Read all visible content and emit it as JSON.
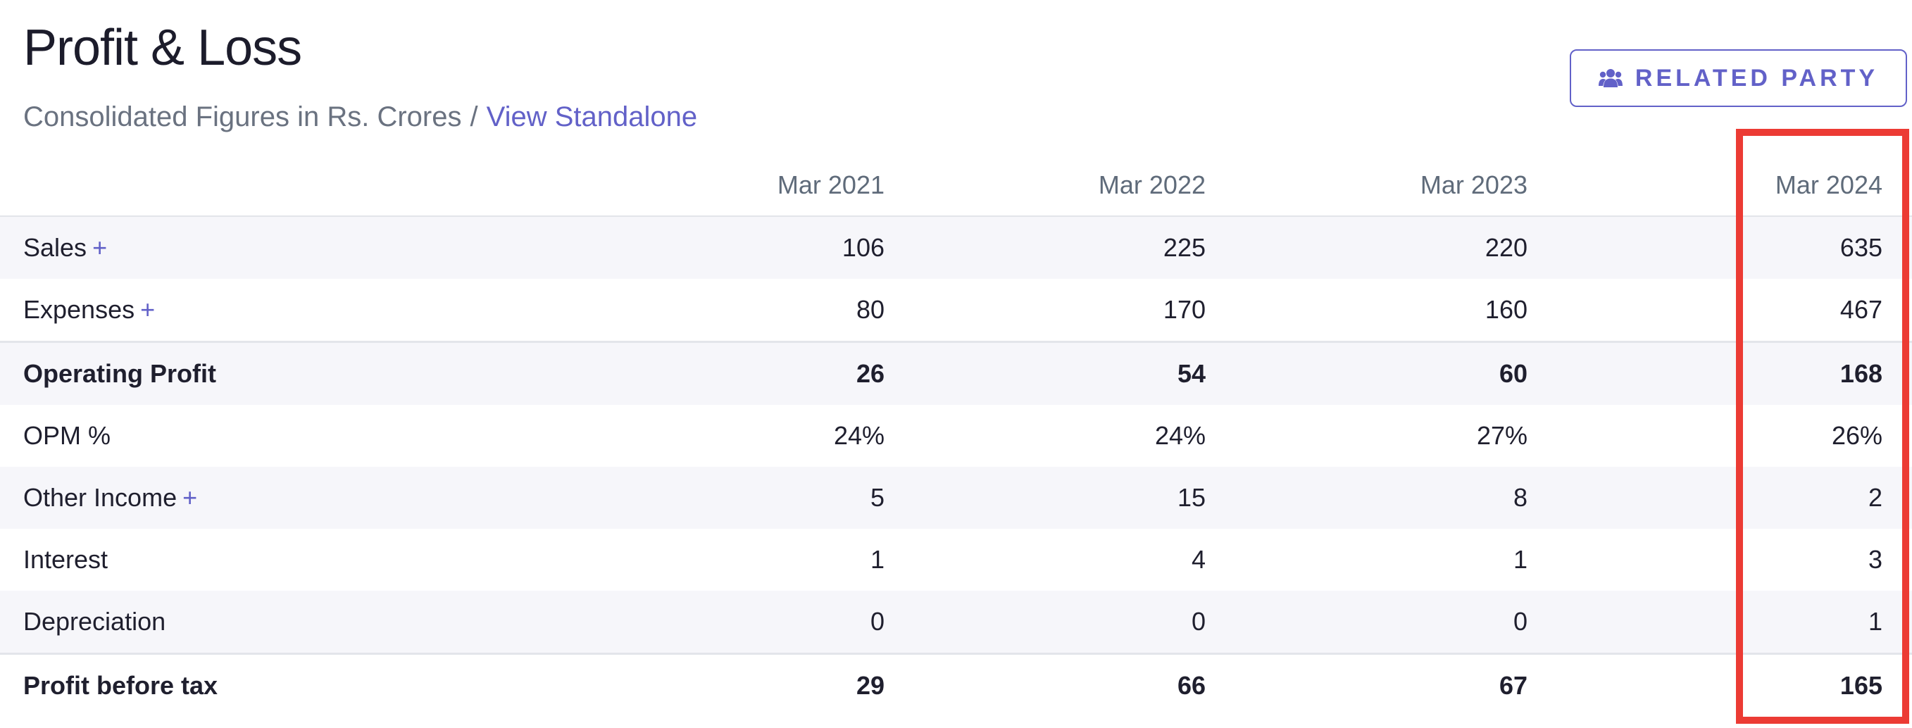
{
  "header": {
    "title": "Profit & Loss",
    "subtitle": "Consolidated Figures in Rs. Crores",
    "separator": "/",
    "view_link": "View Standalone",
    "related_party_label": "RELATED PARTY",
    "related_party_icon": "users-icon"
  },
  "table": {
    "columns": [
      "Mar 2021",
      "Mar 2022",
      "Mar 2023",
      "Mar 2024"
    ],
    "rows": [
      {
        "label": "Sales",
        "expand": "+",
        "values": [
          "106",
          "225",
          "220",
          "635"
        ]
      },
      {
        "label": "Expenses",
        "expand": "+",
        "values": [
          "80",
          "170",
          "160",
          "467"
        ]
      },
      {
        "label": "Operating Profit",
        "values": [
          "26",
          "54",
          "60",
          "168"
        ]
      },
      {
        "label": "OPM %",
        "values": [
          "24%",
          "24%",
          "27%",
          "26%"
        ]
      },
      {
        "label": "Other Income",
        "expand": "+",
        "values": [
          "5",
          "15",
          "8",
          "2"
        ]
      },
      {
        "label": "Interest",
        "values": [
          "1",
          "4",
          "1",
          "3"
        ]
      },
      {
        "label": "Depreciation",
        "values": [
          "0",
          "0",
          "0",
          "1"
        ]
      },
      {
        "label": "Profit before tax",
        "values": [
          "29",
          "66",
          "67",
          "165"
        ]
      }
    ]
  },
  "colors": {
    "accent": "#6261c8",
    "highlight": "#ec3b34",
    "row_shade": "#f6f6fa"
  }
}
